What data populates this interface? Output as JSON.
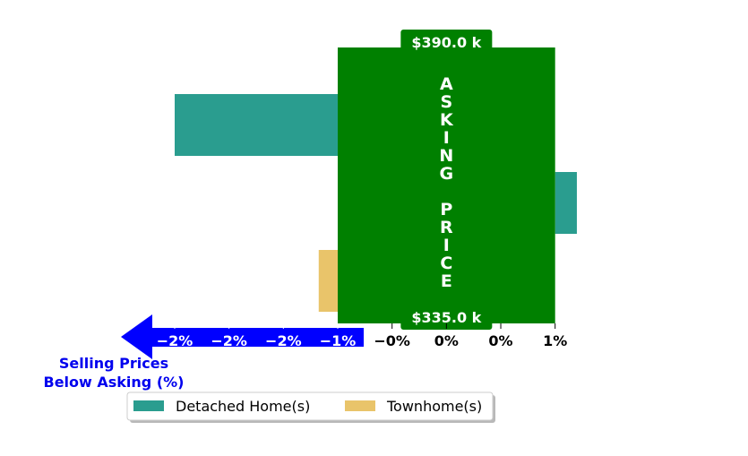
{
  "chart_data": {
    "type": "bar",
    "orientation": "horizontal",
    "series": [
      {
        "name": "Detached Home(s)",
        "color": "#2a9d8f",
        "bars": [
          {
            "start": -3.0,
            "end": 0.0
          },
          {
            "start": 4.0,
            "end": 4.4
          }
        ]
      },
      {
        "name": "Townhome(s)",
        "color": "#e9c46a",
        "bars": [
          {
            "start": -0.35,
            "end": 0.0
          }
        ]
      }
    ],
    "asking_price_band": {
      "start": 0.0,
      "end": 4.0,
      "color": "#008000",
      "label": "ASKING PRICE",
      "top_price": "$390.0 k",
      "bottom_price": "$335.0 k"
    },
    "x_ticks": [
      {
        "value": -3.0,
        "label": "−2%"
      },
      {
        "value": -2.0,
        "label": "−2%"
      },
      {
        "value": -1.0,
        "label": "−2%"
      },
      {
        "value": 0.0,
        "label": "−1%"
      },
      {
        "value": 1.0,
        "label": "−0%"
      },
      {
        "value": 2.0,
        "label": "0%"
      },
      {
        "value": 3.0,
        "label": "0%"
      },
      {
        "value": 4.0,
        "label": "1%"
      }
    ],
    "xlim": [
      -3.0,
      4.4
    ],
    "below_asking_label": [
      "Selling Prices",
      "Below Asking (%)"
    ],
    "arrow_color": "#0000ff",
    "legend": {
      "position": "bottom",
      "entries": [
        "Detached Home(s)",
        "Townhome(s)"
      ]
    },
    "grid": false
  }
}
